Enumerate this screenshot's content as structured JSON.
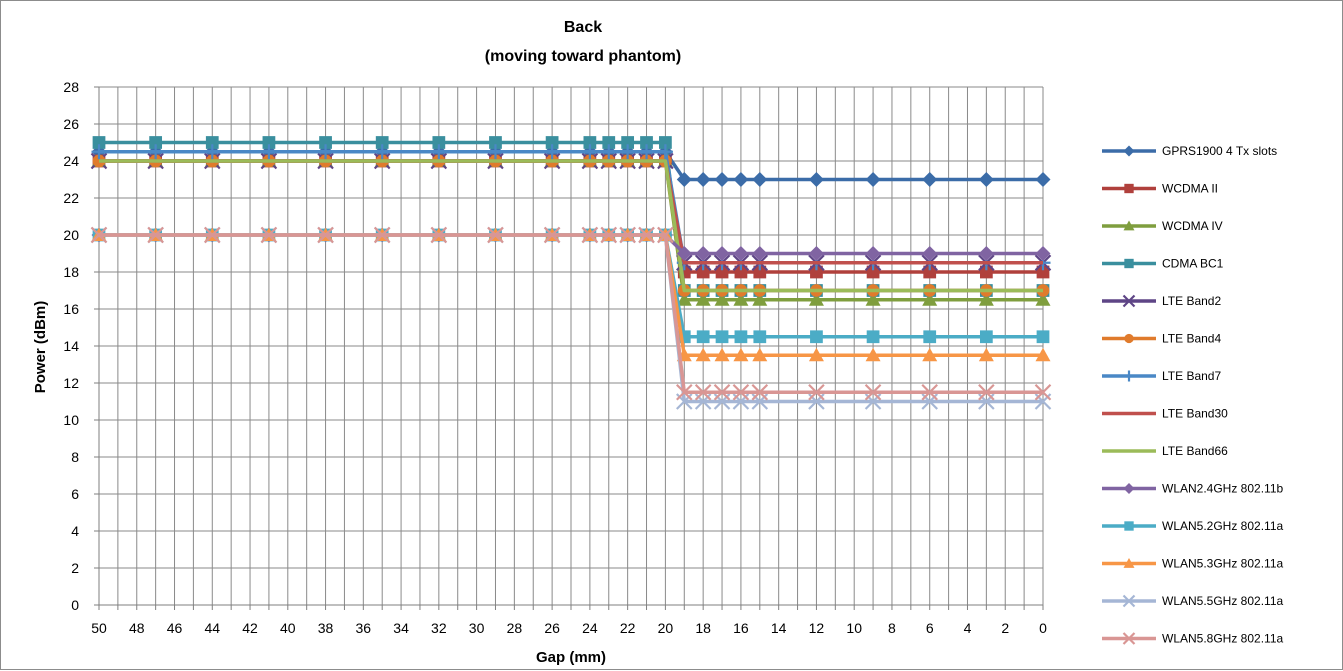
{
  "chart_data": {
    "type": "line",
    "title": "Back",
    "subtitle": "(moving toward phantom)",
    "xlabel": "Gap (mm)",
    "ylabel": "Power (dBm)",
    "x_reversed": true,
    "ylim": [
      0,
      28
    ],
    "y_ticks": [
      0,
      2,
      4,
      6,
      8,
      10,
      12,
      14,
      16,
      18,
      20,
      22,
      24,
      26,
      28
    ],
    "x_tick_labels": [
      "50",
      "48",
      "46",
      "44",
      "42",
      "40",
      "38",
      "36",
      "34",
      "32",
      "30",
      "28",
      "26",
      "24",
      "22",
      "20",
      "18",
      "16",
      "14",
      "12",
      "10",
      "8",
      "6",
      "4",
      "2",
      "0"
    ],
    "x": [
      50,
      47,
      44,
      41,
      38,
      35,
      32,
      29,
      26,
      24,
      23,
      22,
      21,
      20,
      19,
      18,
      17,
      16,
      15,
      12,
      9,
      6,
      3,
      0
    ],
    "grid": true,
    "legend_position": "right",
    "series": [
      {
        "name": "GPRS1900 4 Tx slots",
        "color": "#3b6ca8",
        "marker": "diamond",
        "values": [
          24.5,
          24.5,
          24.5,
          24.5,
          24.5,
          24.5,
          24.5,
          24.5,
          24.5,
          24.5,
          24.5,
          24.5,
          24.5,
          24.5,
          23,
          23,
          23,
          23,
          23,
          23,
          23,
          23,
          23,
          23
        ]
      },
      {
        "name": "WCDMA II",
        "color": "#b0403c",
        "marker": "square",
        "values": [
          24,
          24,
          24,
          24,
          24,
          24,
          24,
          24,
          24,
          24,
          24,
          24,
          24,
          24,
          18,
          18,
          18,
          18,
          18,
          18,
          18,
          18,
          18,
          18
        ]
      },
      {
        "name": "WCDMA IV",
        "color": "#7f9e3e",
        "marker": "triangle",
        "values": [
          24,
          24,
          24,
          24,
          24,
          24,
          24,
          24,
          24,
          24,
          24,
          24,
          24,
          24,
          16.5,
          16.5,
          16.5,
          16.5,
          16.5,
          16.5,
          16.5,
          16.5,
          16.5,
          16.5
        ]
      },
      {
        "name": "CDMA BC1",
        "color": "#3a8f9e",
        "marker": "square",
        "values": [
          25,
          25,
          25,
          25,
          25,
          25,
          25,
          25,
          25,
          25,
          25,
          25,
          25,
          25,
          17,
          17,
          17,
          17,
          17,
          17,
          17,
          17,
          17,
          17
        ]
      },
      {
        "name": "LTE Band2",
        "color": "#5e4586",
        "marker": "x",
        "values": [
          24,
          24,
          24,
          24,
          24,
          24,
          24,
          24,
          24,
          24,
          24,
          24,
          24,
          24,
          18.5,
          18.5,
          18.5,
          18.5,
          18.5,
          18.5,
          18.5,
          18.5,
          18.5,
          18.5
        ]
      },
      {
        "name": "LTE Band4",
        "color": "#e07b2c",
        "marker": "circle",
        "values": [
          24,
          24,
          24,
          24,
          24,
          24,
          24,
          24,
          24,
          24,
          24,
          24,
          24,
          24,
          17,
          17,
          17,
          17,
          17,
          17,
          17,
          17,
          17,
          17
        ]
      },
      {
        "name": "LTE Band7",
        "color": "#4a88c6",
        "marker": "plus",
        "values": [
          24.5,
          24.5,
          24.5,
          24.5,
          24.5,
          24.5,
          24.5,
          24.5,
          24.5,
          24.5,
          24.5,
          24.5,
          24.5,
          24.5,
          18.5,
          18.5,
          18.5,
          18.5,
          18.5,
          18.5,
          18.5,
          18.5,
          18.5,
          18.5
        ]
      },
      {
        "name": "LTE Band30",
        "color": "#c0504d",
        "marker": "none",
        "values": [
          24,
          24,
          24,
          24,
          24,
          24,
          24,
          24,
          24,
          24,
          24,
          24,
          24,
          24,
          18.5,
          18.5,
          18.5,
          18.5,
          18.5,
          18.5,
          18.5,
          18.5,
          18.5,
          18.5
        ]
      },
      {
        "name": "LTE Band66",
        "color": "#9bbb59",
        "marker": "none",
        "values": [
          24,
          24,
          24,
          24,
          24,
          24,
          24,
          24,
          24,
          24,
          24,
          24,
          24,
          24,
          17,
          17,
          17,
          17,
          17,
          17,
          17,
          17,
          17,
          17
        ]
      },
      {
        "name": "WLAN2.4GHz 802.11b",
        "color": "#8064a2",
        "marker": "diamond",
        "values": [
          20,
          20,
          20,
          20,
          20,
          20,
          20,
          20,
          20,
          20,
          20,
          20,
          20,
          20,
          19,
          19,
          19,
          19,
          19,
          19,
          19,
          19,
          19,
          19
        ]
      },
      {
        "name": "WLAN5.2GHz 802.11a",
        "color": "#4bacc6",
        "marker": "square",
        "values": [
          20,
          20,
          20,
          20,
          20,
          20,
          20,
          20,
          20,
          20,
          20,
          20,
          20,
          20,
          14.5,
          14.5,
          14.5,
          14.5,
          14.5,
          14.5,
          14.5,
          14.5,
          14.5,
          14.5
        ]
      },
      {
        "name": "WLAN5.3GHz 802.11a",
        "color": "#f79646",
        "marker": "triangle",
        "values": [
          20,
          20,
          20,
          20,
          20,
          20,
          20,
          20,
          20,
          20,
          20,
          20,
          20,
          20,
          13.5,
          13.5,
          13.5,
          13.5,
          13.5,
          13.5,
          13.5,
          13.5,
          13.5,
          13.5
        ]
      },
      {
        "name": "WLAN5.5GHz 802.11a",
        "color": "#a5b6d5",
        "marker": "x",
        "values": [
          20,
          20,
          20,
          20,
          20,
          20,
          20,
          20,
          20,
          20,
          20,
          20,
          20,
          20,
          11,
          11,
          11,
          11,
          11,
          11,
          11,
          11,
          11,
          11
        ]
      },
      {
        "name": "WLAN5.8GHz 802.11a",
        "color": "#d99694",
        "marker": "x",
        "values": [
          20,
          20,
          20,
          20,
          20,
          20,
          20,
          20,
          20,
          20,
          20,
          20,
          20,
          20,
          11.5,
          11.5,
          11.5,
          11.5,
          11.5,
          11.5,
          11.5,
          11.5,
          11.5,
          11.5
        ]
      }
    ]
  }
}
